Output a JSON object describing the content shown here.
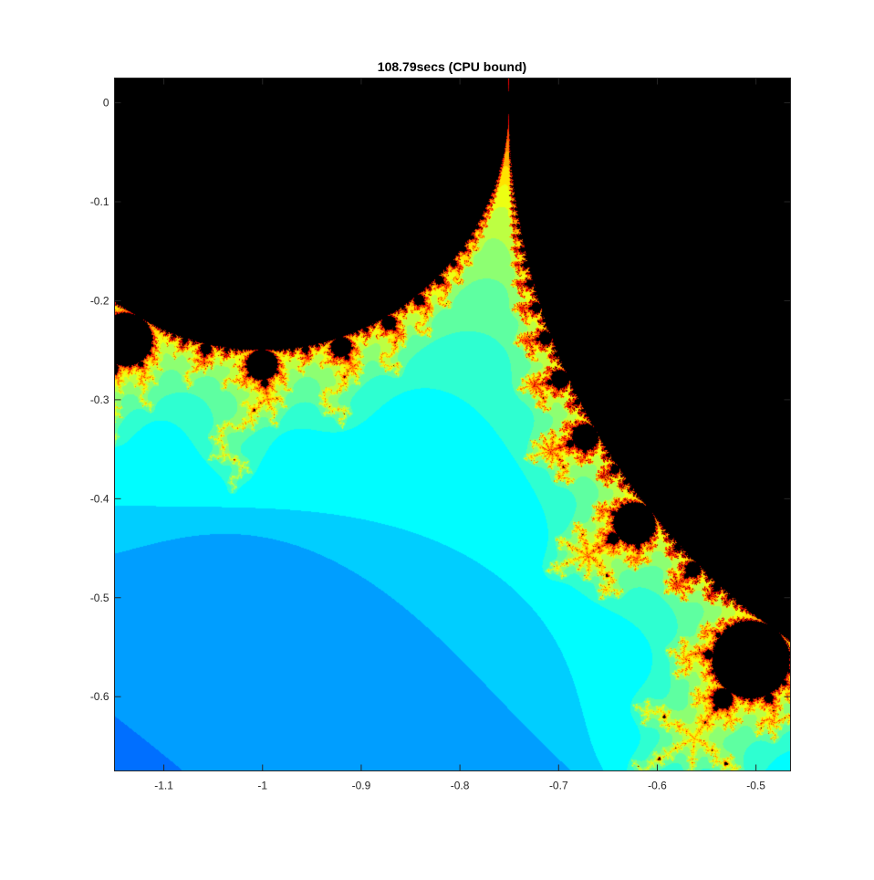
{
  "chart_data": {
    "type": "heatmap",
    "title": "108.79secs (CPU bound)",
    "xlabel": "",
    "ylabel": "",
    "xlim": [
      -1.15,
      -0.465
    ],
    "ylim": [
      -0.025,
      0.675
    ],
    "y_axis_direction": "reverse",
    "colormap": "jet",
    "set_color": "#000000",
    "description_function": "mandelbrot_escape_time",
    "max_iterations": 500,
    "x_ticks": [
      -1.1,
      -1,
      -0.9,
      -0.8,
      -0.7,
      -0.6,
      -0.5
    ],
    "x_tick_labels": [
      "-1.1",
      "-1",
      "-0.9",
      "-0.8",
      "-0.7",
      "-0.6",
      "-0.5"
    ],
    "y_ticks": [
      0,
      0.1,
      0.2,
      0.3,
      0.4,
      0.5,
      0.6
    ],
    "y_tick_labels": [
      "0",
      "-0.1",
      "-0.2",
      "-0.3",
      "-0.4",
      "-0.5",
      "-0.6"
    ],
    "grid": false
  }
}
